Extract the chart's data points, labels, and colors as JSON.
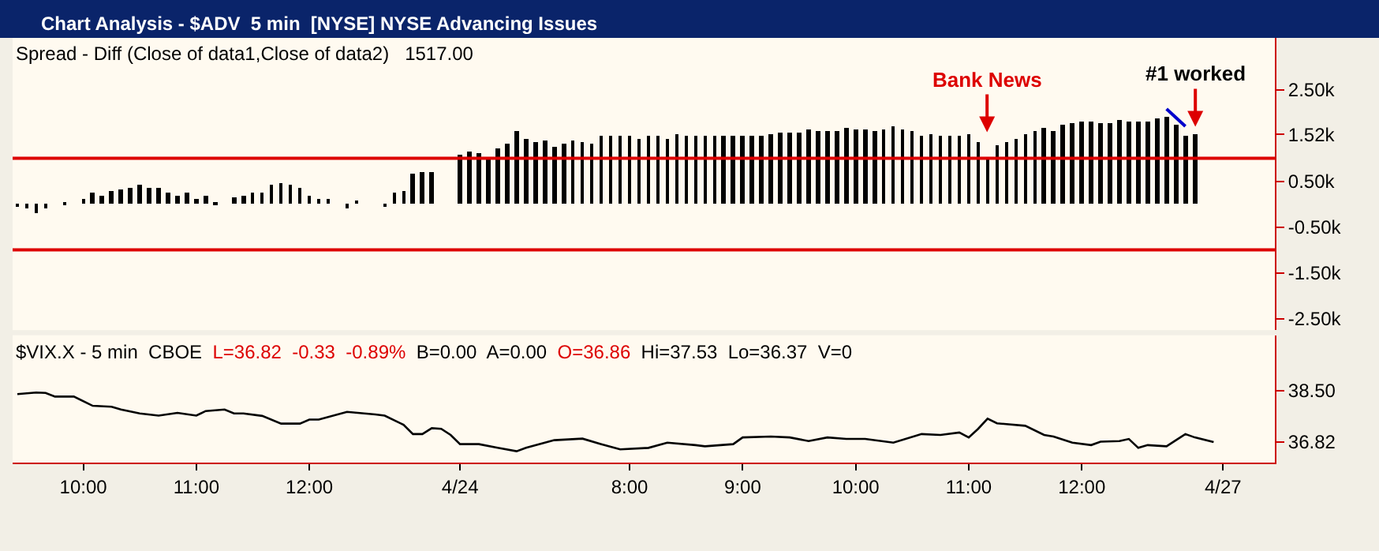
{
  "chart_data": [
    {
      "type": "bar",
      "title": "Chart Analysis - $ADV  5 min  [NYSE] NYSE Advancing Issues",
      "subtitle": "Spread - Diff (Close of data1,Close of data2)   1517.00",
      "categories": [
        null,
        null,
        null,
        null,
        null,
        null,
        null,
        null,
        null,
        null,
        null,
        null,
        null,
        null,
        null,
        null,
        null,
        null,
        null,
        null,
        null,
        null,
        null,
        null,
        null,
        null,
        null,
        null,
        null,
        null,
        null,
        null,
        null,
        null,
        null,
        null,
        null,
        null,
        null,
        null,
        null,
        null,
        null,
        null,
        null,
        null,
        null,
        null,
        null,
        null,
        null,
        null,
        null,
        null,
        null,
        null,
        null,
        null,
        null,
        null,
        null,
        null,
        null,
        null,
        null,
        null,
        null,
        null,
        null,
        null,
        null,
        null,
        null,
        null,
        null,
        null,
        null,
        null,
        null,
        null,
        null,
        null,
        null,
        null,
        null,
        null,
        null,
        null,
        null,
        null,
        null,
        null,
        null,
        null,
        null,
        null,
        null,
        null,
        null,
        null,
        null,
        null,
        null,
        null,
        null,
        null,
        null,
        null,
        null,
        null,
        null,
        null,
        null,
        null,
        null,
        null,
        null,
        null,
        null,
        null,
        null,
        null,
        null,
        null,
        null,
        null,
        null,
        null,
        null,
        null,
        null,
        null,
        null,
        null
      ],
      "series": [
        {
          "type": "bar",
          "color": "#000000",
          "values": [
            -50,
            -80,
            -200,
            -100,
            null,
            20,
            null,
            130,
            250,
            200,
            280,
            310,
            370,
            430,
            350,
            350,
            250,
            200,
            250,
            130,
            200,
            50,
            null,
            150,
            200,
            250,
            250,
            430,
            450,
            430,
            370,
            200,
            130,
            130,
            null,
            -80,
            80,
            null,
            null,
            -30,
            250,
            280,
            660,
            710,
            690,
            null,
            null,
            1080,
            1150,
            1120,
            1000,
            1200,
            1320,
            1580,
            1440,
            1370,
            1400,
            1250,
            1320,
            1400,
            1370,
            1320,
            1480,
            1500,
            1500,
            1500,
            1440,
            1500,
            1480,
            1440,
            1520,
            1510,
            1510,
            1510,
            1510,
            1510,
            1510,
            1490,
            1510,
            1510,
            1540,
            1560,
            1560,
            1560,
            1630,
            1600,
            1600,
            1600,
            1660,
            1630,
            1630,
            1600,
            1630,
            1700,
            1630,
            1580,
            1510,
            1540,
            1510,
            1510,
            1510,
            1540,
            1360,
            1000,
            1280,
            1360,
            1430,
            1540,
            1590,
            1650,
            1590,
            1740,
            1760,
            1800,
            1800,
            1760,
            1760,
            1830,
            1810,
            1810,
            1820,
            1880,
            1910,
            1720,
            1490,
            1520,
            null,
            null,
            null,
            null,
            null,
            null,
            null,
            null
          ]
        },
        {
          "type": "line",
          "color": "#0000cc",
          "values": [
            null,
            null,
            null,
            null,
            null,
            null,
            null,
            null,
            null,
            null,
            null,
            null,
            null,
            null,
            null,
            null,
            null,
            null,
            null,
            null,
            null,
            null,
            null,
            null,
            null,
            null,
            null,
            null,
            null,
            null,
            null,
            null,
            null,
            null,
            null,
            null,
            null,
            null,
            null,
            null,
            null,
            null,
            null,
            null,
            null,
            null,
            null,
            null,
            null,
            null,
            null,
            null,
            null,
            null,
            null,
            null,
            null,
            null,
            null,
            null,
            null,
            null,
            null,
            null,
            null,
            null,
            null,
            null,
            null,
            null,
            null,
            null,
            null,
            null,
            null,
            null,
            null,
            null,
            null,
            null,
            null,
            null,
            null,
            null,
            null,
            null,
            null,
            null,
            null,
            null,
            null,
            null,
            null,
            null,
            null,
            null,
            null,
            null,
            null,
            null,
            null,
            null,
            null,
            null,
            null,
            null,
            null,
            null,
            null,
            null,
            null,
            null,
            null,
            null,
            null,
            null,
            null,
            null,
            null,
            null,
            null,
            null,
            2080,
            null,
            1700,
            null,
            null,
            null,
            null,
            null,
            null,
            null,
            null,
            null
          ]
        }
      ],
      "ylim": [
        -2750,
        3630
      ],
      "yticks": [
        {
          "value": 2500,
          "label": "2.50k"
        },
        {
          "value": 1520,
          "label": "1.52k"
        },
        {
          "value": 500,
          "label": "0.50k"
        },
        {
          "value": -500,
          "label": "-0.50k"
        },
        {
          "value": -1500,
          "label": "-1.50k"
        },
        {
          "value": -2500,
          "label": "-2.50k"
        }
      ],
      "tick_labels": "y",
      "ref_lines": [
        {
          "axis": "y",
          "value": 1000,
          "color": "#dd0000"
        },
        {
          "axis": "y",
          "value": -1000,
          "color": "#dd0000"
        }
      ],
      "annotations": [
        "Bank News",
        {
          "text": "#1 worked",
          "y": 1690
        }
      ]
    },
    {
      "type": "line",
      "title": "$VIX.X - 5 min  CBOE",
      "annotations": [
        "L=36.82",
        "-0.33",
        "-0.89%",
        "B=0.00",
        "A=0.00",
        "O=36.86",
        "Hi=37.53",
        "Lo=36.37",
        "V=0"
      ],
      "categories": [
        null,
        null,
        null,
        null,
        null,
        null,
        null,
        "10:00",
        null,
        null,
        null,
        null,
        null,
        null,
        null,
        null,
        null,
        null,
        null,
        "11:00",
        null,
        null,
        null,
        null,
        null,
        null,
        null,
        null,
        null,
        null,
        null,
        "12:00",
        null,
        null,
        null,
        null,
        null,
        null,
        null,
        null,
        null,
        null,
        null,
        null,
        null,
        null,
        null,
        "4/24",
        null,
        null,
        null,
        null,
        null,
        null,
        null,
        null,
        null,
        null,
        null,
        null,
        null,
        null,
        null,
        null,
        null,
        "8:00",
        null,
        null,
        null,
        null,
        null,
        null,
        null,
        null,
        null,
        null,
        null,
        "9:00",
        null,
        null,
        null,
        null,
        null,
        null,
        null,
        null,
        null,
        null,
        null,
        "10:00",
        null,
        null,
        null,
        null,
        null,
        null,
        null,
        null,
        null,
        null,
        null,
        "11:00",
        null,
        null,
        null,
        null,
        null,
        null,
        null,
        null,
        null,
        null,
        null,
        "12:00",
        null,
        null,
        null,
        null,
        null,
        null,
        null,
        null,
        null,
        null,
        null,
        null,
        null,
        null,
        "4/27",
        null,
        null,
        null,
        null,
        null
      ],
      "series": [
        {
          "color": "#000000",
          "values": [
            38.38,
            null,
            38.43,
            38.42,
            38.3,
            null,
            38.3,
            null,
            38.0,
            null,
            37.97,
            37.88,
            null,
            37.75,
            null,
            37.68,
            null,
            37.77,
            null,
            37.68,
            37.83,
            null,
            37.88,
            37.75,
            37.75,
            null,
            37.67,
            null,
            37.42,
            null,
            37.42,
            37.55,
            37.55,
            null,
            null,
            37.8,
            null,
            null,
            37.72,
            37.68,
            null,
            37.38,
            37.08,
            37.08,
            37.27,
            37.25,
            37.05,
            36.75,
            null,
            36.75,
            null,
            36.63,
            null,
            36.52,
            36.63,
            null,
            null,
            36.88,
            null,
            null,
            36.93,
            null,
            36.75,
            null,
            36.58,
            null,
            null,
            36.63,
            null,
            36.8,
            null,
            null,
            36.72,
            36.68,
            null,
            null,
            36.75,
            36.97,
            null,
            null,
            37.0,
            null,
            36.97,
            null,
            36.85,
            null,
            36.97,
            null,
            36.92,
            null,
            36.92,
            null,
            null,
            36.8,
            null,
            null,
            37.08,
            null,
            37.05,
            null,
            37.13,
            36.97,
            37.25,
            37.58,
            37.43,
            null,
            null,
            37.35,
            null,
            37.05,
            37.0,
            null,
            36.8,
            null,
            36.72,
            36.83,
            null,
            36.85,
            36.92,
            36.63,
            36.72,
            null,
            36.68,
            36.88,
            37.08,
            36.97,
            null,
            36.82,
            null,
            null,
            null,
            null,
            null,
            null
          ]
        }
      ],
      "ylim": [
        36.15,
        40.3
      ],
      "yticks": [
        {
          "value": 38.5,
          "label": "38.50"
        },
        {
          "value": 36.82,
          "label": "36.82"
        }
      ]
    }
  ]
}
